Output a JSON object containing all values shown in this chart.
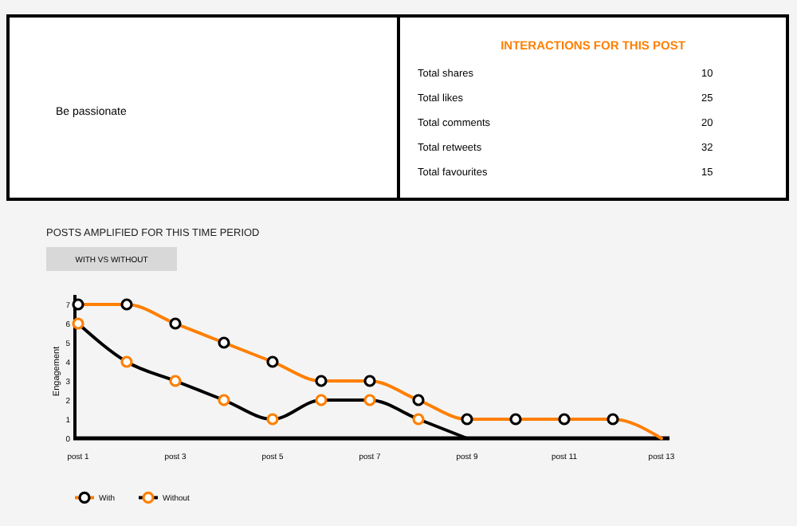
{
  "chart_data": [
    {
      "type": "other",
      "title": "INTERACTIONS FOR THIS POST",
      "annotations": [
        "Be passionate",
        "Total shares",
        "10",
        "Total likes",
        "25",
        "Total comments",
        "20",
        "Total retweets",
        "32",
        "Total favourites",
        "15"
      ]
    },
    {
      "type": "line",
      "title": "POSTS AMPLIFIED FOR THIS TIME PERIOD",
      "subtitle": "WITH VS WITHOUT",
      "ylabel": "Engagement",
      "categories": [
        "post 1",
        null,
        "post 3",
        null,
        "post 5",
        null,
        "post 7",
        null,
        "post 9",
        null,
        "post 11",
        null,
        "post 13"
      ],
      "ylim": [
        0,
        7.5
      ],
      "yticks": [
        0,
        1,
        2,
        3,
        4,
        5,
        6,
        7
      ],
      "legend": "bottom left",
      "marker": "circle",
      "line_style": "solid",
      "series": [
        {
          "name": "With",
          "color": "#ff7f00",
          "values": [
            7,
            7,
            6,
            5,
            4,
            3,
            3,
            2,
            1,
            1,
            1,
            1,
            0
          ]
        },
        {
          "name": "Without",
          "color": "#000000",
          "values": [
            6,
            4,
            3,
            2,
            1,
            2,
            2,
            1,
            0,
            null,
            null,
            null,
            null
          ]
        }
      ]
    }
  ]
}
